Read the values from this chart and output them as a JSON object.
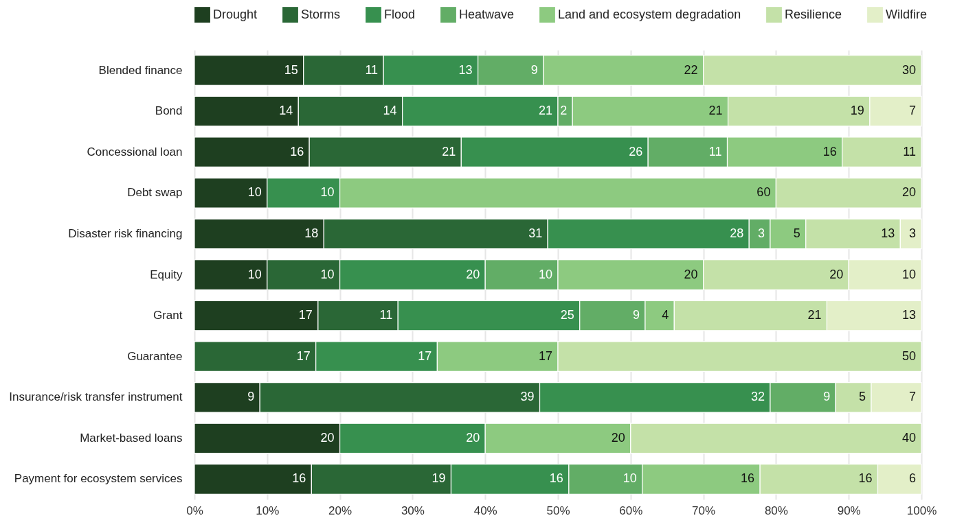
{
  "chart_data": {
    "type": "bar",
    "orientation": "horizontal",
    "stacked": true,
    "legend": "top",
    "grid": "x",
    "categories": [
      "Blended finance",
      "Bond",
      "Concessional loan",
      "Debt swap",
      "Disaster risk financing",
      "Equity",
      "Grant",
      "Guarantee",
      "Insurance/risk transfer instrument",
      "Market-based loans",
      "Payment for ecosystem services"
    ],
    "xlim": [
      0,
      100
    ],
    "xticks": [
      {
        "value": 0,
        "label": "0%"
      },
      {
        "value": 10,
        "label": "10%"
      },
      {
        "value": 20,
        "label": "20%"
      },
      {
        "value": 30,
        "label": "30%"
      },
      {
        "value": 40,
        "label": "40%"
      },
      {
        "value": 50,
        "label": "50%"
      },
      {
        "value": 60,
        "label": "60%"
      },
      {
        "value": 70,
        "label": "70%"
      },
      {
        "value": 80,
        "label": "80%"
      },
      {
        "value": 90,
        "label": "90%"
      },
      {
        "value": 100,
        "label": "100%"
      }
    ],
    "series": [
      {
        "name": "Drought",
        "color": "#1e3f20",
        "values": [
          15,
          14.3,
          15.8,
          10,
          17.8,
          10,
          17,
          null,
          9.0,
          20,
          16.1
        ],
        "value_labels": [
          "15",
          "14",
          "16",
          "10",
          "18",
          "10",
          "17",
          null,
          "9",
          "20",
          "16"
        ]
      },
      {
        "name": "Storms",
        "color": "#2a6736",
        "values": [
          11,
          14.3,
          20.9,
          null,
          30.8,
          10,
          11,
          16.7,
          38.5,
          null,
          19.2
        ],
        "value_labels": [
          "11",
          "14",
          "21",
          null,
          "31",
          "10",
          "11",
          "17",
          "39",
          null,
          "19"
        ]
      },
      {
        "name": "Flood",
        "color": "#37904f",
        "values": [
          13,
          21.4,
          25.7,
          10,
          27.7,
          20,
          25,
          16.7,
          31.7,
          20,
          16.2
        ],
        "value_labels": [
          "13",
          "21",
          "26",
          "10",
          "28",
          "20",
          "25",
          "17",
          "32",
          "20",
          "16"
        ]
      },
      {
        "name": "Heatwave",
        "color": "#62ad66",
        "values": [
          9,
          2,
          10.9,
          null,
          2.9,
          10,
          9,
          null,
          9.0,
          null,
          10.1
        ],
        "value_labels": [
          "9",
          "2",
          "11",
          null,
          "3",
          "10",
          "9",
          null,
          "9",
          null,
          "10"
        ]
      },
      {
        "name": "Land and ecosystem degradation",
        "color": "#8dca80",
        "values": [
          22,
          21.4,
          15.8,
          60,
          4.9,
          20,
          4,
          16.6,
          null,
          20,
          16.2
        ],
        "value_labels": [
          "22",
          "21",
          "16",
          "60",
          "5",
          "20",
          "4",
          "17",
          null,
          "20",
          "16"
        ]
      },
      {
        "name": "Resilience",
        "color": "#c4e1a8",
        "values": [
          30,
          19.5,
          10.9,
          20,
          13.0,
          20,
          21,
          50,
          4.9,
          40,
          16.2
        ],
        "value_labels": [
          "30",
          "19",
          "11",
          "20",
          "13",
          "20",
          "21",
          "50",
          "5",
          "40",
          "16"
        ]
      },
      {
        "name": "Wildfire",
        "color": "#e3efc8",
        "values": [
          null,
          7.1,
          null,
          null,
          2.9,
          10,
          13,
          null,
          6.9,
          null,
          6.0
        ],
        "value_labels": [
          null,
          "7",
          null,
          null,
          "3",
          "10",
          "13",
          null,
          "7",
          null,
          "6"
        ]
      }
    ]
  }
}
